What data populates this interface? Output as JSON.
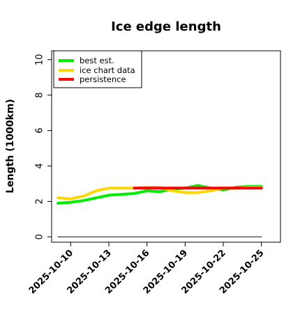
{
  "chart_data": {
    "type": "line",
    "title": "Ice edge length",
    "xlabel": "",
    "ylabel": "Length (1000km)",
    "ylim": [
      -0.3,
      10.5
    ],
    "xlim": [
      "2025-10-08T12:00",
      "2025-10-26T12:00"
    ],
    "yticks": [
      0,
      2,
      4,
      6,
      8,
      10
    ],
    "xticks": [
      "2025-10-10",
      "2025-10-13",
      "2025-10-16",
      "2025-10-19",
      "2025-10-22",
      "2025-10-25"
    ],
    "grid": false,
    "legend_position": "top-left",
    "series": [
      {
        "name": "best est.",
        "color": "#00ee00",
        "x": [
          "2025-10-09",
          "2025-10-10",
          "2025-10-11",
          "2025-10-12",
          "2025-10-13",
          "2025-10-14",
          "2025-10-15",
          "2025-10-16",
          "2025-10-17",
          "2025-10-18",
          "2025-10-19",
          "2025-10-20",
          "2025-10-21",
          "2025-10-22",
          "2025-10-23",
          "2025-10-24",
          "2025-10-25"
        ],
        "values": [
          1.9,
          1.95,
          2.05,
          2.2,
          2.35,
          2.4,
          2.45,
          2.6,
          2.55,
          2.7,
          2.75,
          2.9,
          2.75,
          2.65,
          2.8,
          2.85,
          2.85
        ]
      },
      {
        "name": "ice chart data",
        "color": "#ffd700",
        "x": [
          "2025-10-09",
          "2025-10-10",
          "2025-10-11",
          "2025-10-12",
          "2025-10-13",
          "2025-10-14",
          "2025-10-15",
          "2025-10-16",
          "2025-10-17",
          "2025-10-18",
          "2025-10-19",
          "2025-10-20",
          "2025-10-21",
          "2025-10-22",
          "2025-10-23",
          "2025-10-24",
          "2025-10-25"
        ],
        "values": [
          2.2,
          2.15,
          2.3,
          2.6,
          2.75,
          2.75,
          2.75,
          2.8,
          2.8,
          2.6,
          2.5,
          2.5,
          2.6,
          2.75,
          2.75,
          2.8,
          2.8
        ]
      },
      {
        "name": "persistence",
        "color": "#ff0000",
        "x": [
          "2025-10-15",
          "2025-10-25"
        ],
        "values": [
          2.75,
          2.75
        ]
      },
      {
        "name": "",
        "color": "#555555",
        "x": [
          "2025-10-09",
          "2025-10-25"
        ],
        "values": [
          0,
          0
        ]
      }
    ]
  }
}
